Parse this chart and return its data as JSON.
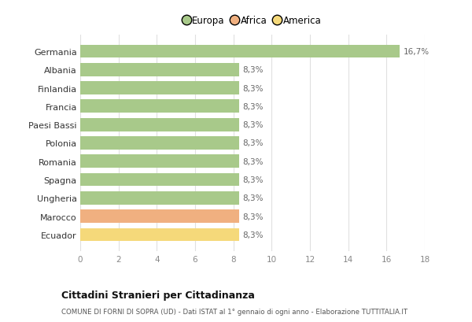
{
  "categories": [
    "Ecuador",
    "Marocco",
    "Ungheria",
    "Spagna",
    "Romania",
    "Polonia",
    "Paesi Bassi",
    "Francia",
    "Finlandia",
    "Albania",
    "Germania"
  ],
  "values": [
    8.3,
    8.3,
    8.3,
    8.3,
    8.3,
    8.3,
    8.3,
    8.3,
    8.3,
    8.3,
    16.7
  ],
  "colors": [
    "#f5d97a",
    "#f0b080",
    "#a8c98a",
    "#a8c98a",
    "#a8c98a",
    "#a8c98a",
    "#a8c98a",
    "#a8c98a",
    "#a8c98a",
    "#a8c98a",
    "#a8c98a"
  ],
  "labels": [
    "8,3%",
    "8,3%",
    "8,3%",
    "8,3%",
    "8,3%",
    "8,3%",
    "8,3%",
    "8,3%",
    "8,3%",
    "8,3%",
    "16,7%"
  ],
  "xlim": [
    0,
    18
  ],
  "xticks": [
    0,
    2,
    4,
    6,
    8,
    10,
    12,
    14,
    16,
    18
  ],
  "legend": [
    {
      "label": "Europa",
      "color": "#a8c98a"
    },
    {
      "label": "Africa",
      "color": "#f0b080"
    },
    {
      "label": "America",
      "color": "#f5d97a"
    }
  ],
  "title": "Cittadini Stranieri per Cittadinanza",
  "subtitle": "COMUNE DI FORNI DI SOPRA (UD) - Dati ISTAT al 1° gennaio di ogni anno - Elaborazione TUTTITALIA.IT",
  "bg_color": "#ffffff",
  "grid_color": "#e0e0e0",
  "label_color": "#666666",
  "tick_color": "#888888"
}
